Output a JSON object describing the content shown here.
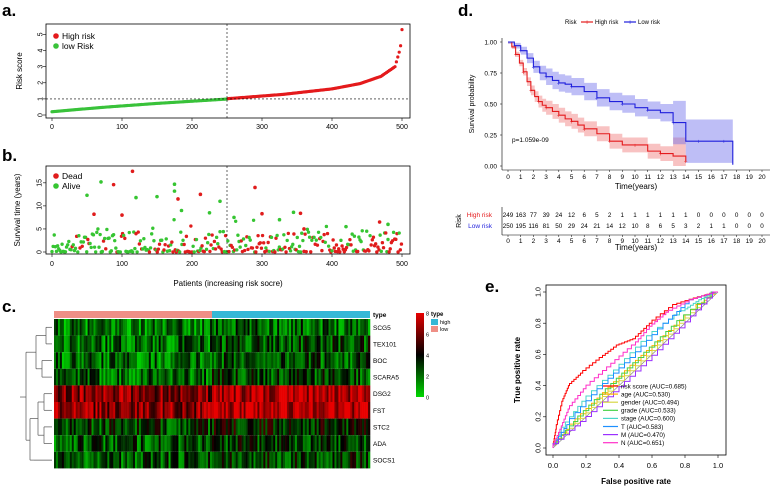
{
  "colors": {
    "high": "#e41a1c",
    "low": "#39c23a",
    "dead": "#e01c1c",
    "alive": "#36c532",
    "km_high": "#e41a1c",
    "km_low": "#1f1fdc",
    "type_high": "#35b8d6",
    "type_low": "#ef8f86",
    "roc": [
      "#ff0000",
      "#ffb000",
      "#d7d745",
      "#46d246",
      "#4ad6c8",
      "#1e90ff",
      "#9b30ff",
      "#ff2fc8"
    ]
  },
  "chart_data": [
    {
      "id": "a",
      "panel_label": "a.",
      "type": "scatter",
      "ylabel": "Risk score",
      "xlim": [
        0,
        500
      ],
      "ylim": [
        0,
        5.4
      ],
      "x_ticks": [
        0,
        100,
        200,
        300,
        400,
        500
      ],
      "y_ticks": [
        0,
        1,
        2,
        3,
        4,
        5
      ],
      "cutoff_x": 250,
      "cutoff_y": 1.0,
      "legend": [
        "High risk",
        "low Risk"
      ],
      "low_curve": [
        [
          0,
          0.2
        ],
        [
          30,
          0.32
        ],
        [
          80,
          0.5
        ],
        [
          150,
          0.72
        ],
        [
          250,
          0.99
        ]
      ],
      "high_curve": [
        [
          250,
          1.01
        ],
        [
          330,
          1.28
        ],
        [
          400,
          1.62
        ],
        [
          440,
          1.95
        ],
        [
          470,
          2.4
        ],
        [
          490,
          3.0
        ],
        [
          496,
          3.9
        ],
        [
          498,
          4.3
        ],
        [
          500,
          5.3
        ]
      ]
    },
    {
      "id": "b",
      "panel_label": "b.",
      "type": "scatter",
      "xlabel": "Patients (increasing risk socre)",
      "ylabel": "Survival time (years)",
      "xlim": [
        0,
        500
      ],
      "ylim": [
        0,
        18
      ],
      "x_ticks": [
        0,
        100,
        200,
        300,
        400,
        500
      ],
      "y_ticks": [
        0,
        5,
        10,
        15
      ],
      "cutoff_x": 250,
      "legend": [
        "Dead",
        "Alive"
      ],
      "dead_highlights": [
        [
          115,
          17.5
        ],
        [
          290,
          14
        ],
        [
          88,
          14.6
        ],
        [
          212,
          12.5
        ],
        [
          300,
          8.3
        ],
        [
          355,
          8.4
        ],
        [
          180,
          11.5
        ],
        [
          100,
          8
        ],
        [
          360,
          5
        ],
        [
          468,
          6.5
        ],
        [
          60,
          8.2
        ]
      ],
      "alive_highlights": [
        [
          175,
          14.7
        ],
        [
          70,
          15.2
        ],
        [
          175,
          13.2
        ],
        [
          150,
          12
        ],
        [
          185,
          9
        ],
        [
          240,
          11
        ],
        [
          260,
          7.5
        ],
        [
          345,
          8.6
        ],
        [
          120,
          11.8
        ],
        [
          50,
          12.3
        ],
        [
          225,
          8.5
        ],
        [
          325,
          7
        ],
        [
          420,
          5.5
        ],
        [
          480,
          6
        ]
      ]
    },
    {
      "id": "c",
      "panel_label": "c.",
      "type": "heatmap",
      "rows": [
        "SCG5",
        "TEX101",
        "BOC",
        "SCARA5",
        "DSG2",
        "FST",
        "STC2",
        "ADA",
        "SOCS1"
      ],
      "row_bias": [
        -1.5,
        -1.2,
        -1.3,
        -1.1,
        2.0,
        2.1,
        -0.6,
        -0.9,
        -0.9
      ],
      "n_cols": 500,
      "split_fraction": 0.5,
      "annotation_row_label": "type",
      "scale_ticks": [
        0,
        2,
        4,
        6,
        8
      ],
      "type_legend_title": "type",
      "type_legend": [
        "high",
        "low"
      ]
    },
    {
      "id": "d",
      "panel_label": "d.",
      "type": "line",
      "legend_title": "Risk",
      "legend": [
        "High risk",
        "Low risk"
      ],
      "xlabel": "Time(years)",
      "ylabel": "Survival probability",
      "xlim": [
        0,
        20
      ],
      "ylim": [
        0,
        1
      ],
      "x_ticks": [
        0,
        1,
        2,
        3,
        4,
        5,
        6,
        7,
        8,
        9,
        10,
        11,
        12,
        13,
        14,
        15,
        16,
        17,
        18,
        19,
        20
      ],
      "y_ticks": [
        "0.00",
        "0.25",
        "0.50",
        "0.75",
        "1.00"
      ],
      "pvalue": "p=1.059e-09",
      "series": [
        {
          "name": "High risk",
          "x": [
            0,
            0.3,
            0.6,
            0.9,
            1.2,
            1.5,
            1.8,
            2.1,
            2.4,
            2.7,
            3,
            3.5,
            4,
            4.5,
            5,
            5.5,
            6,
            7,
            8,
            9,
            10,
            11,
            12,
            13,
            14
          ],
          "y": [
            1,
            0.96,
            0.9,
            0.83,
            0.76,
            0.68,
            0.61,
            0.56,
            0.52,
            0.49,
            0.47,
            0.44,
            0.41,
            0.38,
            0.36,
            0.33,
            0.3,
            0.26,
            0.2,
            0.17,
            0.17,
            0.12,
            0.1,
            0.08,
            0.04
          ],
          "band": 0.06
        },
        {
          "name": "Low risk",
          "x": [
            0,
            0.5,
            1,
            1.5,
            2,
            2.5,
            3,
            3.5,
            4,
            4.5,
            5,
            6,
            7,
            8,
            9,
            10,
            11,
            12,
            13,
            14,
            15,
            16,
            17,
            17.7
          ],
          "y": [
            1,
            0.97,
            0.93,
            0.87,
            0.8,
            0.75,
            0.72,
            0.69,
            0.67,
            0.66,
            0.64,
            0.6,
            0.55,
            0.52,
            0.5,
            0.47,
            0.45,
            0.43,
            0.35,
            0.2,
            0.2,
            0.2,
            0.2,
            0.01
          ],
          "band": 0.07
        }
      ],
      "risk_table": {
        "title": "Risk",
        "xlabel": "Time(years)",
        "rows": [
          {
            "name": "High risk",
            "values": [
              "249",
              "163",
              "77",
              "39",
              "24",
              "12",
              "6",
              "5",
              "2",
              "1",
              "1",
              "1",
              "1",
              "1",
              "1",
              "0",
              "0",
              "0",
              "0",
              "0",
              "0"
            ]
          },
          {
            "name": "Low risk",
            "values": [
              "250",
              "195",
              "116",
              "81",
              "50",
              "29",
              "24",
              "21",
              "14",
              "12",
              "10",
              "8",
              "6",
              "5",
              "3",
              "2",
              "1",
              "1",
              "0",
              "0",
              "0"
            ]
          }
        ]
      }
    },
    {
      "id": "e",
      "panel_label": "e.",
      "type": "line",
      "xlabel": "False positive rate",
      "ylabel": "True positive rate",
      "xlim": [
        0,
        1
      ],
      "ylim": [
        0,
        1
      ],
      "x_ticks": [
        "0.0",
        "0.2",
        "0.4",
        "0.6",
        "0.8",
        "1.0"
      ],
      "y_ticks": [
        "0.0",
        "0.2",
        "0.4",
        "0.6",
        "0.8",
        "1.0"
      ],
      "series": [
        {
          "name": "risk score (AUC=0.685)",
          "points": [
            [
              0,
              0
            ],
            [
              0.02,
              0.12
            ],
            [
              0.06,
              0.3
            ],
            [
              0.1,
              0.4
            ],
            [
              0.18,
              0.48
            ],
            [
              0.3,
              0.58
            ],
            [
              0.4,
              0.66
            ],
            [
              0.5,
              0.7
            ],
            [
              0.6,
              0.8
            ],
            [
              0.75,
              0.92
            ],
            [
              0.9,
              0.97
            ],
            [
              1,
              1
            ]
          ]
        },
        {
          "name": "age (AUC=0.530)",
          "points": [
            [
              0,
              0
            ],
            [
              0.1,
              0.12
            ],
            [
              0.3,
              0.32
            ],
            [
              0.5,
              0.53
            ],
            [
              0.7,
              0.72
            ],
            [
              0.9,
              0.92
            ],
            [
              1,
              1
            ]
          ]
        },
        {
          "name": "gender (AUC=0.494)",
          "points": [
            [
              0,
              0
            ],
            [
              0.2,
              0.19
            ],
            [
              0.4,
              0.4
            ],
            [
              0.6,
              0.59
            ],
            [
              0.8,
              0.8
            ],
            [
              1,
              1
            ]
          ]
        },
        {
          "name": "grade (AUC=0.533)",
          "points": [
            [
              0,
              0
            ],
            [
              0.15,
              0.17
            ],
            [
              0.35,
              0.38
            ],
            [
              0.55,
              0.58
            ],
            [
              0.75,
              0.78
            ],
            [
              1,
              1
            ]
          ]
        },
        {
          "name": "stage (AUC=0.600)",
          "points": [
            [
              0,
              0
            ],
            [
              0.05,
              0.1
            ],
            [
              0.2,
              0.3
            ],
            [
              0.4,
              0.5
            ],
            [
              0.6,
              0.72
            ],
            [
              0.8,
              0.88
            ],
            [
              0.9,
              0.95
            ],
            [
              1,
              1
            ]
          ]
        },
        {
          "name": "T (AUC=0.583)",
          "points": [
            [
              0,
              0
            ],
            [
              0.1,
              0.15
            ],
            [
              0.3,
              0.38
            ],
            [
              0.5,
              0.58
            ],
            [
              0.7,
              0.8
            ],
            [
              0.85,
              0.95
            ],
            [
              1,
              1
            ]
          ]
        },
        {
          "name": "M (AUC=0.470)",
          "points": [
            [
              0,
              0
            ],
            [
              0.2,
              0.17
            ],
            [
              0.4,
              0.36
            ],
            [
              0.6,
              0.56
            ],
            [
              0.8,
              0.77
            ],
            [
              1,
              1
            ]
          ]
        },
        {
          "name": "N (AUC=0.651)",
          "points": [
            [
              0,
              0
            ],
            [
              0.05,
              0.12
            ],
            [
              0.1,
              0.25
            ],
            [
              0.2,
              0.38
            ],
            [
              0.35,
              0.52
            ],
            [
              0.5,
              0.66
            ],
            [
              0.6,
              0.78
            ],
            [
              0.7,
              0.87
            ],
            [
              0.85,
              0.95
            ],
            [
              1,
              1
            ]
          ]
        }
      ]
    }
  ]
}
